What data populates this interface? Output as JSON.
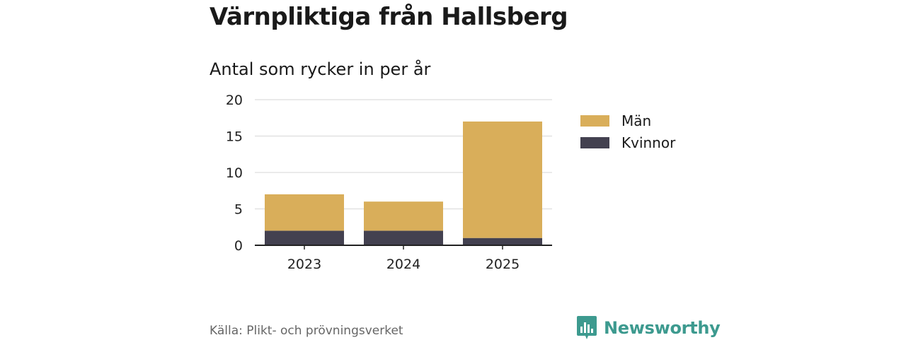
{
  "title": "Värnpliktiga från Hallsberg",
  "source": "Källa: Plikt- och prövningsverket",
  "brand": {
    "name": "Newsworthy",
    "icon": "bar-chart-icon"
  },
  "colors": {
    "man": "#d9ae5a",
    "kvinnor": "#434150",
    "brand": "#3d9a8f",
    "grid": "#dddddd",
    "axis": "#222222"
  },
  "chart_data": {
    "type": "bar",
    "stacked": true,
    "title": "Antal som rycker in per år",
    "categories": [
      "2023",
      "2024",
      "2025"
    ],
    "series": [
      {
        "name": "Kvinnor",
        "values": [
          2,
          2,
          1
        ]
      },
      {
        "name": "Män",
        "values": [
          5,
          4,
          16
        ]
      }
    ],
    "legend": [
      "Män",
      "Kvinnor"
    ],
    "legend_position": "right",
    "ylim": [
      0,
      20
    ],
    "yticks": [
      "0",
      "5",
      "10",
      "15",
      "20"
    ],
    "xlabel": "",
    "ylabel": "",
    "grid": true
  }
}
